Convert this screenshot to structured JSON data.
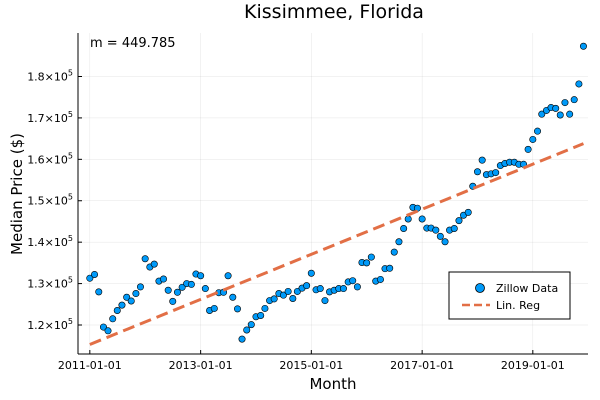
{
  "chart_data": {
    "type": "scatter",
    "title": "Kissimmee, Florida",
    "xlabel": "Month",
    "ylabel": "Median Price ($)",
    "annotation": "m = 449.785",
    "x_ticks": [
      "2011-01-01",
      "2013-01-01",
      "2015-01-01",
      "2017-01-01",
      "2019-01-01"
    ],
    "y_ticks": [
      {
        "value": 120000,
        "mantissa": "1.2",
        "exp": "5"
      },
      {
        "value": 130000,
        "mantissa": "1.3",
        "exp": "5"
      },
      {
        "value": 140000,
        "mantissa": "1.4",
        "exp": "5"
      },
      {
        "value": 150000,
        "mantissa": "1.5",
        "exp": "5"
      },
      {
        "value": 160000,
        "mantissa": "1.6",
        "exp": "5"
      },
      {
        "value": 170000,
        "mantissa": "1.7",
        "exp": "5"
      },
      {
        "value": 180000,
        "mantissa": "1.8",
        "exp": "5"
      }
    ],
    "x_range": [
      "2010-10-15",
      "2019-12-31"
    ],
    "ylim": [
      113000,
      190500
    ],
    "grid": true,
    "legend_position": "bottom-right",
    "series": [
      {
        "name": "Zillow Data",
        "type": "scatter",
        "color": "#009AF9",
        "x": [
          "2011-01",
          "2011-02",
          "2011-03",
          "2011-04",
          "2011-05",
          "2011-06",
          "2011-07",
          "2011-08",
          "2011-09",
          "2011-10",
          "2011-11",
          "2011-12",
          "2012-01",
          "2012-02",
          "2012-03",
          "2012-04",
          "2012-05",
          "2012-06",
          "2012-07",
          "2012-08",
          "2012-09",
          "2012-10",
          "2012-11",
          "2012-12",
          "2013-01",
          "2013-02",
          "2013-03",
          "2013-04",
          "2013-05",
          "2013-06",
          "2013-07",
          "2013-08",
          "2013-09",
          "2013-10",
          "2013-11",
          "2013-12",
          "2014-01",
          "2014-02",
          "2014-03",
          "2014-04",
          "2014-05",
          "2014-06",
          "2014-07",
          "2014-08",
          "2014-09",
          "2014-10",
          "2014-11",
          "2014-12",
          "2015-01",
          "2015-02",
          "2015-03",
          "2015-04",
          "2015-05",
          "2015-06",
          "2015-07",
          "2015-08",
          "2015-09",
          "2015-10",
          "2015-11",
          "2015-12",
          "2016-01",
          "2016-02",
          "2016-03",
          "2016-04",
          "2016-05",
          "2016-06",
          "2016-07",
          "2016-08",
          "2016-09",
          "2016-10",
          "2016-11",
          "2016-12",
          "2017-01",
          "2017-02",
          "2017-03",
          "2017-04",
          "2017-05",
          "2017-06",
          "2017-07",
          "2017-08",
          "2017-09",
          "2017-10",
          "2017-11",
          "2017-12",
          "2018-01",
          "2018-02",
          "2018-03",
          "2018-04",
          "2018-05",
          "2018-06",
          "2018-07",
          "2018-08",
          "2018-09",
          "2018-10",
          "2018-11",
          "2018-12",
          "2019-01",
          "2019-02",
          "2019-03",
          "2019-04",
          "2019-05",
          "2019-06",
          "2019-07",
          "2019-08",
          "2019-09",
          "2019-10",
          "2019-11",
          "2019-12"
        ],
        "y": [
          131300,
          132200,
          128000,
          119500,
          118600,
          121500,
          123500,
          124800,
          126700,
          125800,
          127600,
          129200,
          136000,
          134000,
          134700,
          130600,
          131100,
          128400,
          125700,
          127900,
          129100,
          130000,
          129800,
          132300,
          131900,
          128800,
          123500,
          124000,
          127800,
          127900,
          131900,
          126700,
          123900,
          116600,
          118800,
          120100,
          122000,
          122300,
          124000,
          125900,
          126300,
          127600,
          127200,
          128100,
          126400,
          128100,
          128900,
          129500,
          132500,
          128500,
          128800,
          125900,
          128000,
          128400,
          128800,
          128800,
          130400,
          130700,
          129200,
          135100,
          135000,
          136400,
          130600,
          131000,
          133600,
          133700,
          137600,
          140100,
          143300,
          145600,
          148400,
          148200,
          145600,
          143400,
          143400,
          142900,
          141400,
          140100,
          142900,
          143300,
          145200,
          146500,
          147200,
          153500,
          157000,
          159800,
          156300,
          156500,
          156800,
          158500,
          159000,
          159300,
          159300,
          158800,
          158800,
          162400,
          164800,
          166800,
          170900,
          171800,
          172500,
          172300,
          170700,
          173700,
          170900,
          174400,
          178200,
          187300
        ]
      },
      {
        "name": "Lin. Reg",
        "type": "line",
        "color": "#E26F46",
        "x": [
          "2011-01-01",
          "2019-12-01"
        ],
        "y": [
          115300,
          163800
        ]
      }
    ]
  }
}
